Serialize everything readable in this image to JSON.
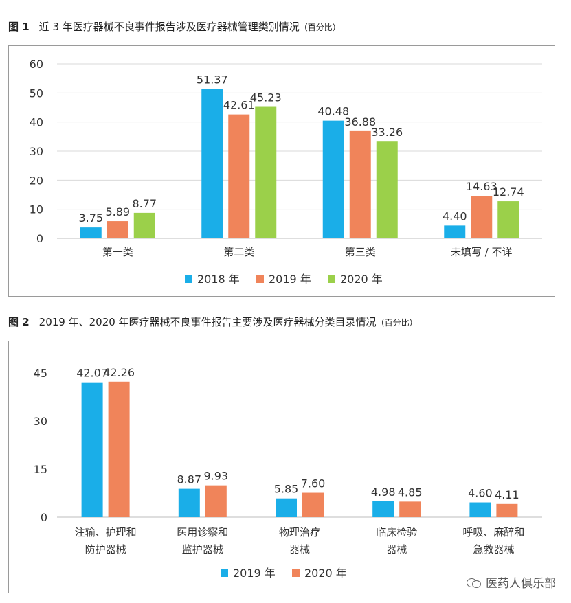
{
  "figures": [
    {
      "number": "图 1",
      "title": "近 3 年医疗器械不良事件报告涉及医疗器械管理类别情况",
      "unit": "（百分比）"
    },
    {
      "number": "图 2",
      "title": "2019 年、2020 年医疗器械不良事件报告主要涉及医疗器械分类目录情况",
      "unit": "（百分比）"
    }
  ],
  "chart_data": [
    {
      "type": "bar",
      "categories": [
        "第一类",
        "第二类",
        "第三类",
        "未填写 / 不详"
      ],
      "series": [
        {
          "name": "2018 年",
          "color": "#1aaee8",
          "values": [
            3.75,
            51.37,
            40.48,
            4.4
          ]
        },
        {
          "name": "2019 年",
          "color": "#f0845a",
          "values": [
            5.89,
            42.61,
            36.88,
            14.63
          ]
        },
        {
          "name": "2020 年",
          "color": "#9bd04a",
          "values": [
            8.77,
            45.23,
            33.26,
            12.74
          ]
        }
      ],
      "value_labels": [
        [
          "3.75",
          "51.37",
          "40.48",
          "4.40"
        ],
        [
          "5.89",
          "42.61",
          "36.88",
          "14.63"
        ],
        [
          "8.77",
          "45.23",
          "33.26",
          "12.74"
        ]
      ],
      "ylim": [
        0,
        60
      ],
      "yticks": [
        "0",
        "10",
        "20",
        "30",
        "40",
        "50",
        "60"
      ],
      "grid": true,
      "legend": "bottom"
    },
    {
      "type": "bar",
      "categories": [
        "注输、护理和\n防护器械",
        "医用诊察和\n监护器械",
        "物理治疗\n器械",
        "临床检验\n器械",
        "呼吸、麻醉和\n急救器械"
      ],
      "series": [
        {
          "name": "2019 年",
          "color": "#1aaee8",
          "values": [
            42.07,
            8.87,
            5.85,
            4.98,
            4.6
          ]
        },
        {
          "name": "2020 年",
          "color": "#f0845a",
          "values": [
            42.26,
            9.93,
            7.6,
            4.85,
            4.11
          ]
        }
      ],
      "value_labels": [
        [
          "42.07",
          "8.87",
          "5.85",
          "4.98",
          "4.60"
        ],
        [
          "42.26",
          "9.93",
          "7.60",
          "4.85",
          "4.11"
        ]
      ],
      "ylim": [
        0,
        45
      ],
      "yticks": [
        "0",
        "15",
        "30",
        "45"
      ],
      "grid": false,
      "legend": "bottom"
    }
  ],
  "watermark": {
    "text": "医药人俱乐部",
    "icon": "wechat-icon"
  }
}
